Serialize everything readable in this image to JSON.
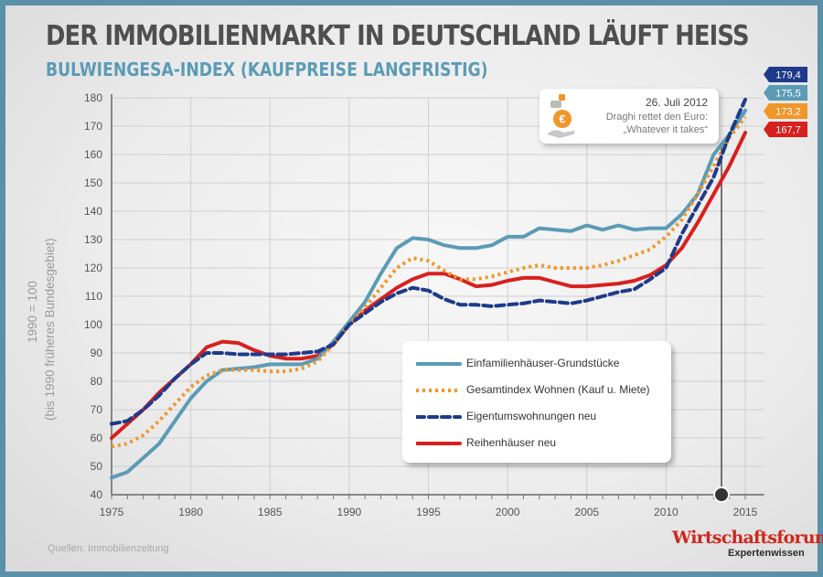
{
  "title": "DER IMMOBILIENMARKT IN DEUTSCHLAND LÄUFT HEISS",
  "subtitle": "BULWIENGESA-INDEX (KAUFPREISE LANGFRISTIG)",
  "y_axis_label_line1": "1990 = 100",
  "y_axis_label_line2": "(bis 1990 früheres Bundesgebiet)",
  "source": "Quellen: Immobilienzeitung",
  "brand": {
    "name": "Wirtschaftsforum:",
    "sub": "Expertenwissen"
  },
  "callout": {
    "date": "26. Juli 2012",
    "line1": "Draghi rettet den Euro:",
    "line2": "„Whatever it takes“",
    "year": 2013.5,
    "icon": "euro-hand-icon"
  },
  "chart_data": {
    "type": "line",
    "xlim": [
      1975,
      2015.5
    ],
    "ylim": [
      40,
      180
    ],
    "x_ticks": [
      1975,
      1980,
      1985,
      1990,
      1995,
      2000,
      2005,
      2010,
      2015
    ],
    "y_ticks": [
      40,
      50,
      60,
      70,
      80,
      90,
      100,
      110,
      120,
      130,
      140,
      150,
      160,
      170,
      180
    ],
    "grid": true,
    "legend_position": "center-right",
    "series": [
      {
        "name": "Einfamilienhäuser-Grundstücke",
        "color": "#5b9bb5",
        "style": "solid",
        "end_label": "175,5",
        "x": [
          1975,
          1976,
          1977,
          1978,
          1979,
          1980,
          1981,
          1982,
          1983,
          1984,
          1985,
          1986,
          1987,
          1988,
          1989,
          1990,
          1991,
          1992,
          1993,
          1994,
          1995,
          1996,
          1997,
          1998,
          1999,
          2000,
          2001,
          2002,
          2003,
          2004,
          2005,
          2006,
          2007,
          2008,
          2009,
          2010,
          2011,
          2012,
          2013,
          2014,
          2015
        ],
        "y": [
          46,
          48,
          53,
          58,
          66,
          74,
          80,
          84,
          84.5,
          85,
          86,
          86,
          86,
          88,
          94,
          101,
          108,
          118,
          127,
          130.5,
          130,
          128,
          127,
          127,
          128,
          131,
          131,
          134,
          133.5,
          133,
          135,
          133.5,
          135,
          133.5,
          134,
          134,
          139,
          146,
          160,
          167,
          175.5
        ]
      },
      {
        "name": "Gesamtindex Wohnen (Kauf u. Miete)",
        "color": "#f0962a",
        "style": "dotted",
        "end_label": "173,2",
        "x": [
          1975,
          1976,
          1977,
          1978,
          1979,
          1980,
          1981,
          1982,
          1983,
          1984,
          1985,
          1986,
          1987,
          1988,
          1989,
          1990,
          1991,
          1992,
          1993,
          1994,
          1995,
          1996,
          1997,
          1998,
          1999,
          2000,
          2001,
          2002,
          2003,
          2004,
          2005,
          2006,
          2007,
          2008,
          2009,
          2010,
          2011,
          2012,
          2013,
          2014,
          2015
        ],
        "y": [
          57,
          58,
          61,
          66,
          72,
          78,
          82,
          84,
          84,
          84,
          83.5,
          83.5,
          84.5,
          87,
          93,
          100,
          106,
          113,
          120,
          123.5,
          122.5,
          119,
          116,
          116,
          117,
          118.5,
          120,
          121,
          120,
          120,
          120,
          121,
          122.5,
          124.5,
          126.5,
          131,
          137,
          146,
          156,
          166,
          173.2
        ]
      },
      {
        "name": "Eigentumswohnungen neu",
        "color": "#1f3a8a",
        "style": "dashed",
        "end_label": "179,4",
        "x": [
          1975,
          1976,
          1977,
          1978,
          1979,
          1980,
          1981,
          1982,
          1983,
          1984,
          1985,
          1986,
          1987,
          1988,
          1989,
          1990,
          1991,
          1992,
          1993,
          1994,
          1995,
          1996,
          1997,
          1998,
          1999,
          2000,
          2001,
          2002,
          2003,
          2004,
          2005,
          2006,
          2007,
          2008,
          2009,
          2010,
          2011,
          2012,
          2013,
          2014,
          2015
        ],
        "y": [
          65,
          66,
          70,
          75,
          81,
          86,
          90,
          90,
          89.5,
          89.5,
          89.5,
          89.5,
          90,
          90.5,
          93,
          100,
          104,
          108,
          111,
          113,
          112,
          109,
          107,
          107,
          106.5,
          107,
          107.5,
          108.5,
          108,
          107.5,
          108.5,
          110,
          111.5,
          112.5,
          116,
          120,
          132,
          142,
          152,
          167,
          179.4
        ]
      },
      {
        "name": "Reihenhäuser neu",
        "color": "#d8201e",
        "style": "solid",
        "end_label": "167,7",
        "x": [
          1975,
          1976,
          1977,
          1978,
          1979,
          1980,
          1981,
          1982,
          1983,
          1984,
          1985,
          1986,
          1987,
          1988,
          1989,
          1990,
          1991,
          1992,
          1993,
          1994,
          1995,
          1996,
          1997,
          1998,
          1999,
          2000,
          2001,
          2002,
          2003,
          2004,
          2005,
          2006,
          2007,
          2008,
          2009,
          2010,
          2011,
          2012,
          2013,
          2014,
          2015
        ],
        "y": [
          60,
          65,
          70,
          76,
          81,
          86,
          92,
          94,
          93.5,
          91,
          89,
          88,
          88,
          89,
          93,
          100,
          105,
          109,
          113,
          116,
          118,
          118,
          116,
          113.5,
          114,
          115.5,
          116.5,
          116.5,
          115,
          113.5,
          113.5,
          114,
          114.5,
          115.5,
          117.5,
          121,
          127,
          136,
          146,
          156,
          167.7
        ]
      }
    ]
  }
}
